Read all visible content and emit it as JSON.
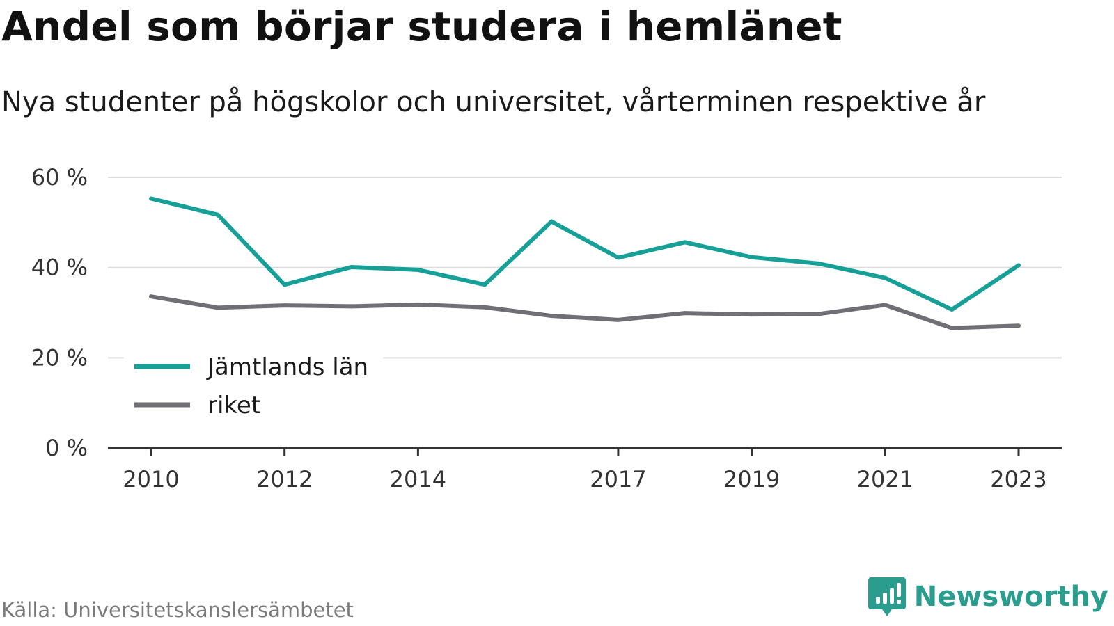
{
  "title": "Andel som börjar studera i hemlänet",
  "subtitle": "Nya studenter på högskolor och universitet, vårterminen respektive år",
  "source": "Källa: Universitetskanslersämbetet",
  "brand": {
    "name": "Newsworthy",
    "logo_icon": "bar-chart-speech-bubble-icon",
    "color": "#2a9d8f"
  },
  "colors": {
    "series_1": "#17a097",
    "series_2": "#6f6f75",
    "grid": "#dddddd",
    "axis": "#333333"
  },
  "chart_data": {
    "type": "line",
    "title": "Andel som börjar studera i hemlänet",
    "subtitle": "Nya studenter på högskolor och universitet, vårterminen respektive år",
    "xlabel": "",
    "ylabel": "",
    "x": [
      2010,
      2011,
      2012,
      2013,
      2014,
      2015,
      2016,
      2017,
      2018,
      2019,
      2020,
      2021,
      2022,
      2023
    ],
    "x_ticks": [
      "2010",
      "2012",
      "2014",
      "2017",
      "2019",
      "2021",
      "2023"
    ],
    "y_ticks": [
      "0 %",
      "20 %",
      "40 %",
      "60 %"
    ],
    "ylim": [
      0,
      60
    ],
    "grid": true,
    "legend_position": "lower-left",
    "series": [
      {
        "name": "Jämtlands län",
        "color": "#17a097",
        "values": [
          55.3,
          51.7,
          36.2,
          40.1,
          39.5,
          36.2,
          50.2,
          42.2,
          45.6,
          42.3,
          40.9,
          37.7,
          30.7,
          40.5
        ]
      },
      {
        "name": "riket",
        "color": "#6f6f75",
        "values": [
          33.6,
          31.1,
          31.6,
          31.4,
          31.8,
          31.2,
          29.3,
          28.4,
          29.9,
          29.6,
          29.7,
          31.7,
          26.6,
          27.1
        ]
      }
    ]
  }
}
